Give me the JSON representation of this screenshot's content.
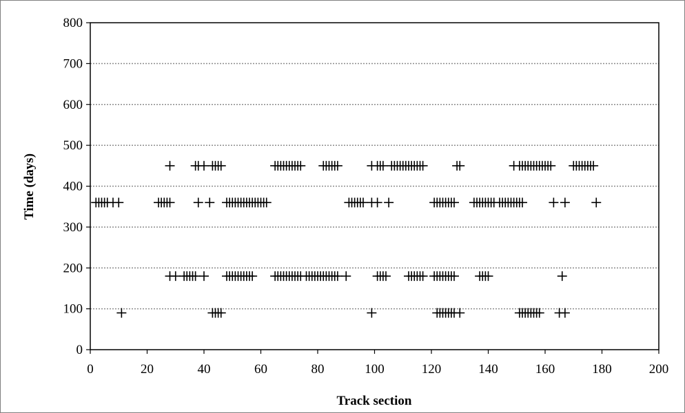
{
  "chart_data": {
    "type": "scatter",
    "xlabel": "Track section",
    "ylabel": "Time (days)",
    "xlim": [
      0,
      200
    ],
    "ylim": [
      0,
      800
    ],
    "x_ticks": [
      0,
      20,
      40,
      60,
      80,
      100,
      120,
      140,
      160,
      180,
      200
    ],
    "y_ticks": [
      0,
      100,
      200,
      300,
      400,
      500,
      600,
      700,
      800
    ],
    "gridlines": "horizontal dotted",
    "marker": "plus",
    "colors": {
      "marker": "#000000",
      "grid": "#8c8c8c",
      "frame": "#000000"
    },
    "series": [
      {
        "y": 90,
        "x": [
          11,
          43,
          44,
          45,
          46,
          99,
          122,
          123,
          124,
          125,
          126,
          127,
          128,
          130,
          151,
          152,
          153,
          154,
          155,
          156,
          157,
          158,
          165,
          167
        ]
      },
      {
        "y": 180,
        "x": [
          28,
          30,
          33,
          34,
          35,
          36,
          37,
          40,
          48,
          49,
          50,
          51,
          52,
          53,
          54,
          55,
          56,
          57,
          65,
          66,
          67,
          68,
          69,
          70,
          71,
          72,
          73,
          74,
          76,
          77,
          78,
          79,
          80,
          81,
          82,
          83,
          84,
          85,
          86,
          87,
          90,
          101,
          102,
          103,
          104,
          112,
          113,
          114,
          115,
          116,
          117,
          121,
          122,
          123,
          124,
          125,
          126,
          127,
          128,
          137,
          138,
          139,
          140,
          166
        ]
      },
      {
        "y": 360,
        "x": [
          2,
          3,
          4,
          5,
          6,
          8,
          10,
          24,
          25,
          26,
          27,
          28,
          38,
          42,
          48,
          49,
          50,
          51,
          52,
          53,
          54,
          55,
          56,
          57,
          58,
          59,
          60,
          61,
          62,
          91,
          92,
          93,
          94,
          95,
          96,
          99,
          101,
          105,
          121,
          122,
          123,
          124,
          125,
          126,
          127,
          128,
          135,
          136,
          137,
          138,
          139,
          140,
          141,
          142,
          144,
          145,
          146,
          147,
          148,
          149,
          150,
          151,
          152,
          163,
          167,
          178
        ]
      },
      {
        "y": 450,
        "x": [
          28,
          37,
          38,
          40,
          43,
          44,
          45,
          46,
          65,
          66,
          67,
          68,
          69,
          70,
          71,
          72,
          73,
          74,
          82,
          83,
          84,
          85,
          86,
          87,
          99,
          101,
          102,
          103,
          106,
          107,
          108,
          109,
          110,
          111,
          112,
          113,
          114,
          115,
          116,
          117,
          129,
          130,
          149,
          151,
          152,
          153,
          154,
          155,
          156,
          157,
          158,
          159,
          160,
          161,
          162,
          170,
          171,
          172,
          173,
          174,
          175,
          176,
          177
        ]
      }
    ]
  }
}
